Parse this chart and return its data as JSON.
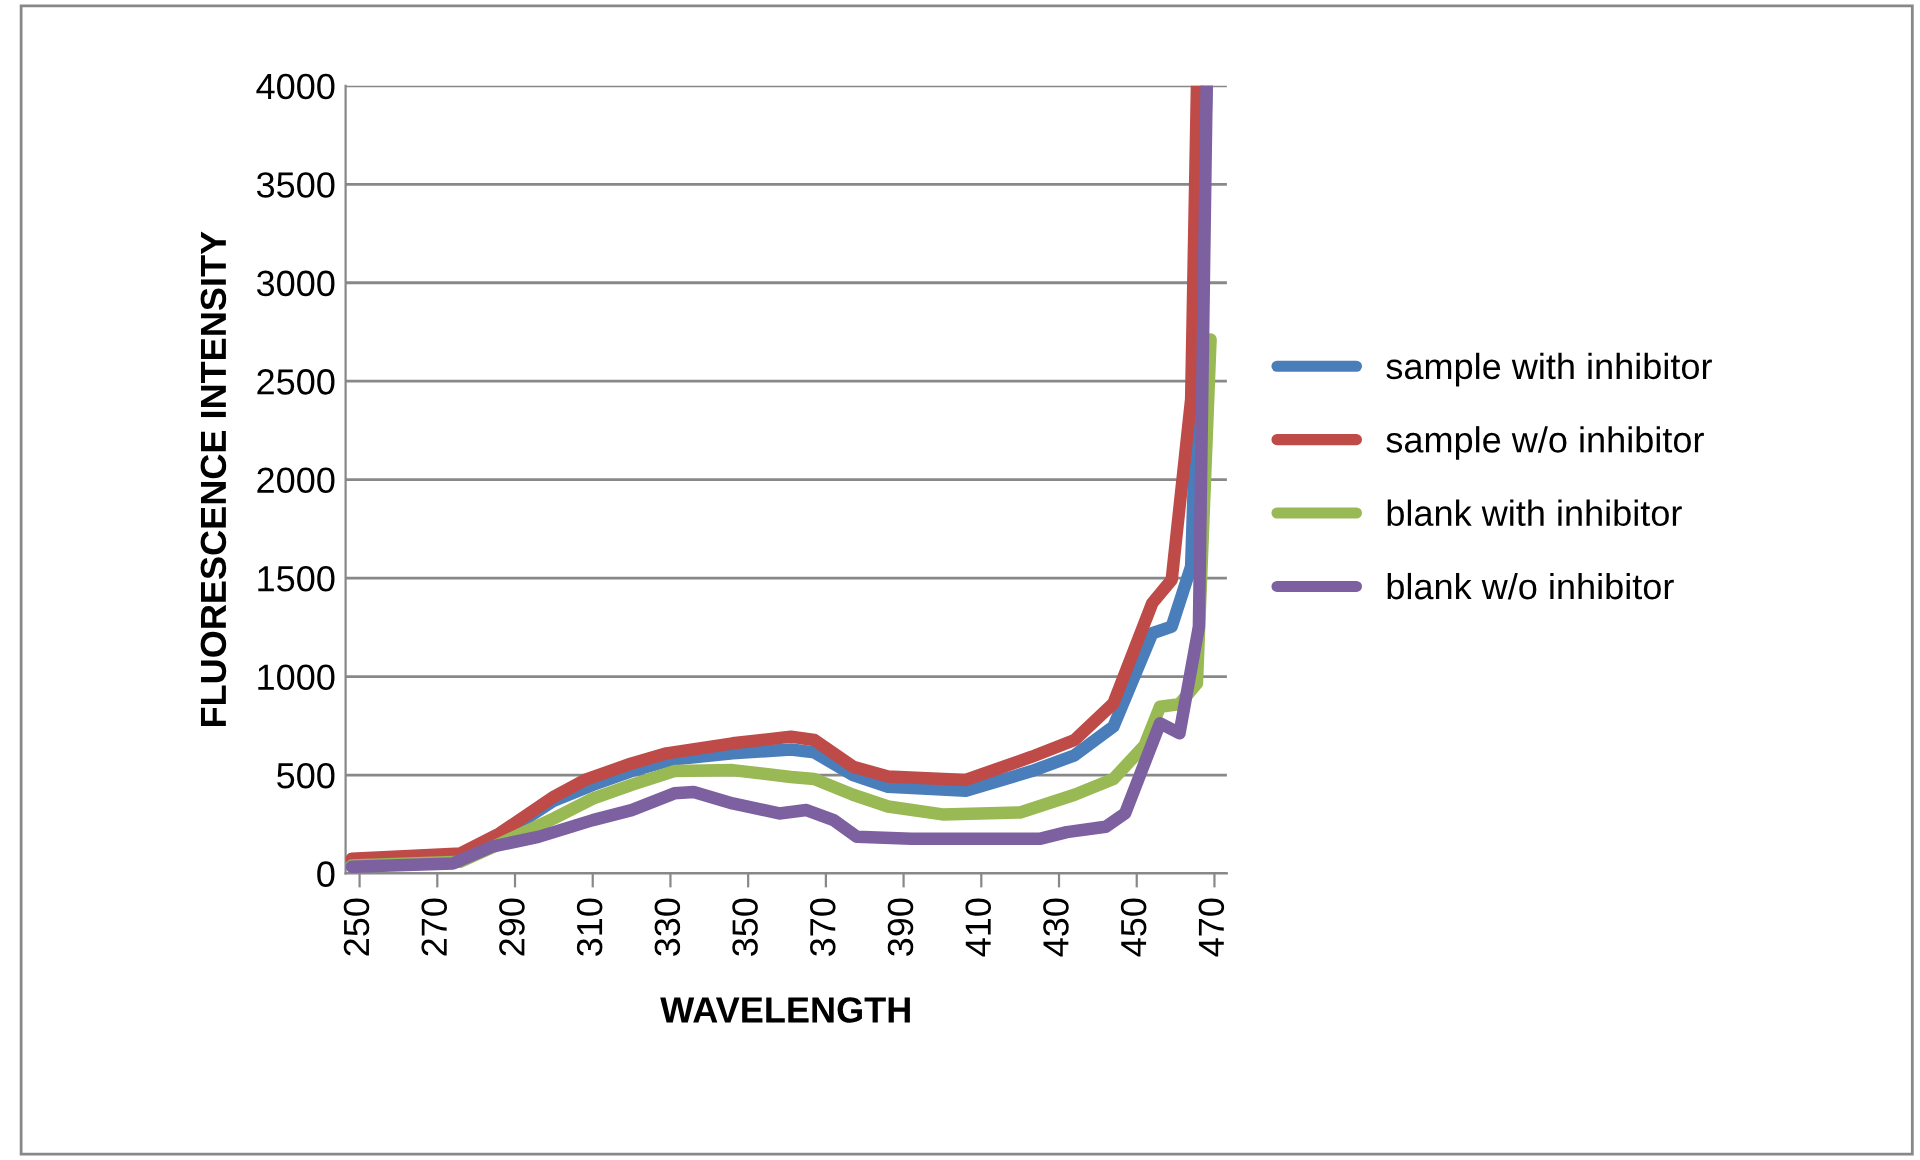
{
  "chart_data": {
    "type": "line",
    "xlabel": "WAVELENGTH",
    "ylabel": "FLUORESCENCE INTENSITY",
    "xlim": [
      246.4,
      473.2
    ],
    "xticks": [
      250,
      270,
      290,
      310,
      330,
      350,
      370,
      390,
      410,
      430,
      450,
      470
    ],
    "ylim": [
      0,
      4000
    ],
    "yticks": [
      0,
      500,
      1000,
      1500,
      2000,
      2500,
      3000,
      3500,
      4000
    ],
    "grid": "y",
    "legend": "right",
    "marker": "none",
    "line_style": "solid",
    "series": [
      {
        "name": "sample with inhibitor",
        "color": "#4a7ebb",
        "x": [
          248,
          276,
          286,
          300,
          310,
          320,
          331,
          346,
          361,
          367,
          377,
          386,
          406,
          423,
          434,
          444,
          454,
          459,
          464,
          468
        ],
        "values": [
          70,
          95,
          190,
          370,
          450,
          520,
          580,
          610,
          630,
          615,
          500,
          440,
          420,
          520,
          600,
          746,
          1220,
          1254,
          1559,
          4000
        ]
      },
      {
        "name": "sample w/o inhibitor",
        "color": "#be4b48",
        "x": [
          248,
          276,
          286,
          300,
          308,
          320,
          329,
          346,
          361,
          367,
          377,
          386,
          406,
          423,
          434,
          444,
          454,
          459,
          464,
          465.5
        ],
        "values": [
          75,
          102,
          203,
          390,
          475,
          559,
          610,
          661,
          695,
          678,
          542,
          492,
          475,
          593,
          678,
          864,
          1373,
          1492,
          2407,
          4000
        ]
      },
      {
        "name": "blank with inhibitor",
        "color": "#98b954",
        "x": [
          248,
          276,
          286,
          300,
          310,
          320,
          331,
          346,
          361,
          367,
          377,
          386,
          400,
          420,
          434,
          444,
          452,
          456,
          461,
          465.5,
          469
        ],
        "values": [
          40,
          60,
          150,
          280,
          380,
          450,
          520,
          525,
          490,
          480,
          400,
          340,
          300,
          310,
          400,
          480,
          650,
          847,
          860,
          966,
          2712
        ]
      },
      {
        "name": "blank w/o inhibitor",
        "color": "#7d60a0",
        "x": [
          248,
          274,
          284,
          296,
          310,
          320,
          331,
          336,
          346,
          358,
          365,
          372,
          378,
          392,
          425,
          432,
          442,
          447,
          456,
          461,
          466,
          468
        ],
        "values": [
          34,
          51,
          136,
          186,
          271,
          322,
          407,
          414,
          356,
          305,
          322,
          271,
          186,
          176,
          176,
          210,
          237,
          305,
          763,
          712,
          1254,
          4000
        ]
      }
    ]
  }
}
